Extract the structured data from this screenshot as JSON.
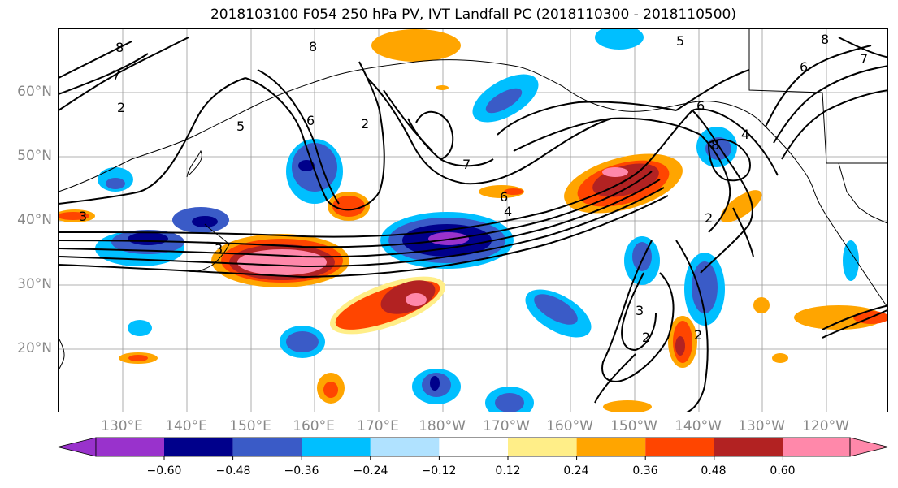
{
  "title": "2018103100 F054 250 hPa PV, IVT Landfall PC (2018110300 - 2018110500)",
  "map": {
    "lat_labels": [
      "60°N",
      "50°N",
      "40°N",
      "30°N",
      "20°N"
    ],
    "lon_labels": [
      "130°E",
      "140°E",
      "150°E",
      "160°E",
      "170°E",
      "180°W",
      "170°W",
      "160°W",
      "150°W",
      "140°W",
      "130°W",
      "120°W"
    ],
    "contour_labels": [
      "8",
      "7",
      "2",
      "5",
      "6",
      "8",
      "2",
      "3",
      "3",
      "6",
      "4",
      "7",
      "8",
      "6",
      "2",
      "3",
      "2",
      "2",
      "4",
      "5",
      "6",
      "7",
      "8"
    ],
    "colors": {
      "neg_060": "#9932CC",
      "neg_048": "#00008B",
      "neg_036": "#3A5BC7",
      "neg_024": "#00BFFF",
      "neg_012": "#B0E2FF",
      "zero": "#FFFFFF",
      "pos_012": "#FFEE88",
      "pos_024": "#FFA500",
      "pos_036": "#FF4500",
      "pos_048": "#B22222",
      "pos_060": "#FF88AA"
    }
  },
  "colorbar": {
    "tick_labels": [
      "−0.60",
      "−0.48",
      "−0.36",
      "−0.24",
      "−0.12",
      "0.12",
      "0.24",
      "0.36",
      "0.48",
      "0.60"
    ],
    "colors": [
      "#9932CC",
      "#00008B",
      "#3A5BC7",
      "#00BFFF",
      "#B0E2FF",
      "#FFFFFF",
      "#FFEE88",
      "#FFA500",
      "#FF4500",
      "#B22222",
      "#FF88AA"
    ]
  }
}
